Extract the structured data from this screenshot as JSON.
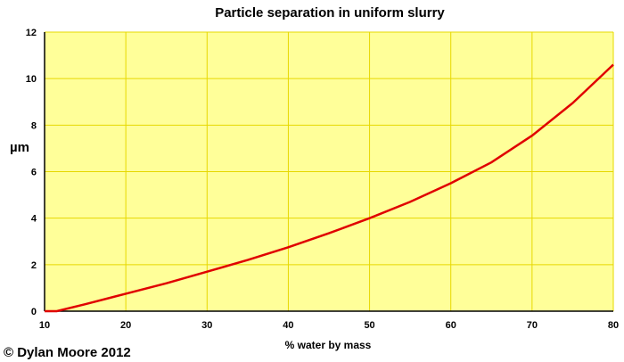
{
  "chart_data": {
    "type": "line",
    "title": "Particle separation in uniform slurry",
    "xlabel": "% water by mass",
    "ylabel": "µm",
    "xlim": [
      10,
      80
    ],
    "ylim": [
      0,
      12
    ],
    "xticks": [
      10,
      20,
      30,
      40,
      50,
      60,
      70,
      80
    ],
    "yticks": [
      0,
      2,
      4,
      6,
      8,
      10,
      12
    ],
    "grid": true,
    "series": [
      {
        "color": "#e00000",
        "x": [
          11.5,
          15,
          20,
          25,
          30,
          35,
          40,
          45,
          50,
          55,
          60,
          65,
          70,
          75,
          80
        ],
        "y": [
          0,
          0.3,
          0.75,
          1.2,
          1.7,
          2.2,
          2.75,
          3.35,
          4.0,
          4.7,
          5.5,
          6.4,
          7.55,
          8.95,
          10.6
        ]
      }
    ],
    "plot_background": "#ffff99",
    "grid_color": "#e6d800"
  },
  "copyright": "© Dylan Moore 2012"
}
